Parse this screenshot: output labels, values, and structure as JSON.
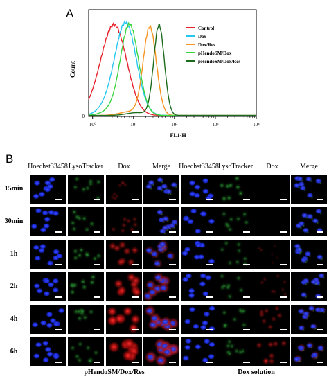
{
  "panel_a": {
    "label": "A",
    "chart_data": {
      "type": "line",
      "xlabel": "FL1-H",
      "ylabel": "Count",
      "xscale": "log",
      "xlim": [
        0.8,
        10000
      ],
      "ylim": [
        0,
        1
      ],
      "xticks": [
        "10⁰",
        "10¹",
        "10²",
        "10³",
        "10⁴"
      ],
      "ytick_label": "0",
      "legend_position": "top-right",
      "series": [
        {
          "name": "Control",
          "color": "#e8202a",
          "peak": 3.5,
          "width": 0.3,
          "height": 0.93,
          "minor": 0.12,
          "minor_peak": 1.4
        },
        {
          "name": "Dox",
          "color": "#26c7ef",
          "peak": 6.5,
          "width": 0.26,
          "height": 0.97,
          "minor": 0.08,
          "minor_peak": 2.5
        },
        {
          "name": "Dox/Res",
          "color": "#f7931e",
          "peak": 25,
          "width": 0.16,
          "height": 0.94,
          "minor": 0.04,
          "minor_peak": 8
        },
        {
          "name": "pHendoSM/Dox",
          "color": "#38d43d",
          "peak": 8,
          "width": 0.22,
          "height": 0.96,
          "minor": 0.05,
          "minor_peak": 3
        },
        {
          "name": "pHendoSM/Dox/Res",
          "color": "#1c6b1c",
          "peak": 42,
          "width": 0.13,
          "height": 0.96,
          "minor": 0.03,
          "minor_peak": 12
        }
      ]
    }
  },
  "panel_b": {
    "label": "B",
    "group1_headers": [
      "Hoechst33458",
      "LysoTracker",
      "Dox",
      "Merge"
    ],
    "group2_headers": [
      "Hoechst33458",
      "LysoTracker",
      "Dox",
      "Merge"
    ],
    "rows": [
      "15min",
      "30min",
      "1h",
      "2h",
      "4h",
      "6h"
    ],
    "group1_caption": "pHendoSM/Dox/Res",
    "group2_caption": "Dox solution",
    "dox_intensity_group1": [
      0.15,
      0.25,
      0.55,
      0.75,
      0.85,
      1.0
    ],
    "dox_intensity_group2": [
      0.0,
      0.0,
      0.05,
      0.15,
      0.3,
      0.4
    ],
    "lyso_intensity_group1": [
      0.3,
      0.35,
      0.35,
      0.4,
      0.35,
      0.3
    ],
    "lyso_intensity_group2": [
      0.45,
      0.3,
      0.25,
      0.3,
      0.3,
      0.3
    ]
  }
}
